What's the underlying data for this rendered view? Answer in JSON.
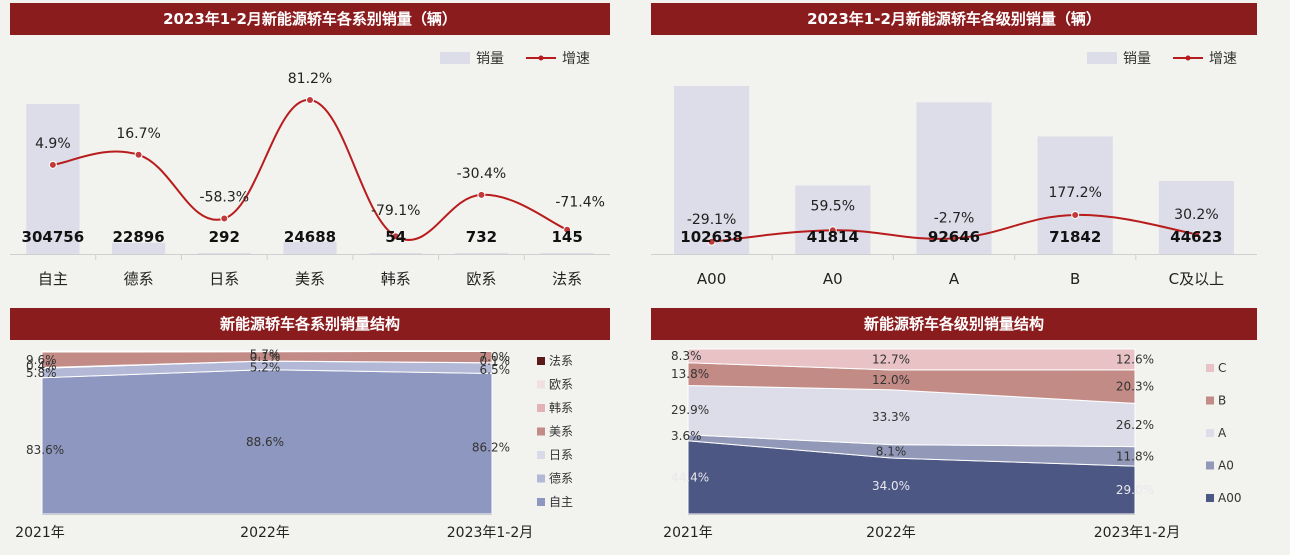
{
  "chart_data": [
    {
      "type": "bar",
      "title": "2023年1-2月新能源轿车各系别销量（辆）",
      "categories": [
        "自主",
        "德系",
        "日系",
        "美系",
        "韩系",
        "欧系",
        "法系"
      ],
      "series": [
        {
          "name": "销量",
          "type": "bar",
          "values": [
            304756,
            22896,
            292,
            24688,
            54,
            732,
            145
          ]
        },
        {
          "name": "增速",
          "type": "line",
          "values": [
            4.9,
            16.7,
            -58.3,
            81.2,
            -79.1,
            -30.4,
            -71.4
          ],
          "value_labels": [
            "4.9%",
            "16.7%",
            "-58.3%",
            "81.2%",
            "-79.1%",
            "-30.4%",
            "-71.4%"
          ]
        }
      ],
      "legend": [
        "销量",
        "增速"
      ],
      "legend_position": "top-right",
      "colors": {
        "bar": "#dcdde8",
        "line": "#b81c1c"
      }
    },
    {
      "type": "bar",
      "title": "2023年1-2月新能源轿车各级别销量（辆）",
      "categories": [
        "A00",
        "A0",
        "A",
        "B",
        "C及以上"
      ],
      "series": [
        {
          "name": "销量",
          "type": "bar",
          "values": [
            102638,
            41814,
            92646,
            71842,
            44623
          ]
        },
        {
          "name": "增速",
          "type": "line",
          "values": [
            -29.1,
            59.5,
            -2.7,
            177.2,
            30.2
          ],
          "value_labels": [
            "-29.1%",
            "59.5%",
            "-2.7%",
            "177.2%",
            "30.2%"
          ]
        }
      ],
      "legend": [
        "销量",
        "增速"
      ],
      "legend_position": "top-right",
      "colors": {
        "bar": "#dcdde8",
        "line": "#b81c1c"
      }
    },
    {
      "type": "area",
      "stacked": "percent",
      "title": "新能源轿车各系别销量结构",
      "x": [
        "2021年",
        "2022年",
        "2023年1-2月"
      ],
      "series": [
        {
          "name": "自主",
          "values": [
            83.6,
            88.6,
            86.2
          ],
          "labels": [
            "83.6%",
            "88.6%",
            "86.2%"
          ],
          "color": "#8e97bf"
        },
        {
          "name": "德系",
          "values": [
            5.8,
            5.2,
            6.5
          ],
          "labels": [
            "5.8%",
            "5.2%",
            "6.5%"
          ],
          "color": "#b3b8d6"
        },
        {
          "name": "日系",
          "values": [
            0.4,
            0.1,
            0.1
          ],
          "labels": [
            "0.4%",
            "0.1%",
            "0.1%"
          ],
          "color": "#d8dae8"
        },
        {
          "name": "美系",
          "values": [
            9.6,
            5.7,
            7.0
          ],
          "labels": [
            "9.6%",
            "5.7%",
            "7.0%"
          ],
          "color": "#c38b86"
        },
        {
          "name": "韩系",
          "values": [
            0.0,
            0.0,
            0.0
          ],
          "labels": [
            "",
            "",
            ""
          ],
          "color": "#e1b2b6"
        },
        {
          "name": "欧系",
          "values": [
            0.3,
            0.3,
            0.1
          ],
          "labels": [
            "",
            "",
            ""
          ],
          "color": "#f0e0e2"
        },
        {
          "name": "法系",
          "values": [
            0.3,
            0.1,
            0.1
          ],
          "labels": [
            "",
            "",
            ""
          ],
          "color": "#5a1a1a"
        }
      ],
      "legend": [
        "法系",
        "欧系",
        "韩系",
        "美系",
        "日系",
        "德系",
        "自主"
      ],
      "legend_position": "right"
    },
    {
      "type": "area",
      "stacked": "percent",
      "title": "新能源轿车各级别销量结构",
      "x": [
        "2021年",
        "2022年",
        "2023年1-2月"
      ],
      "series": [
        {
          "name": "A00",
          "values": [
            44.4,
            34.0,
            29.0
          ],
          "labels": [
            "44.4%",
            "34.0%",
            "29.0%"
          ],
          "color": "#4d5784"
        },
        {
          "name": "A0",
          "values": [
            3.6,
            8.1,
            11.8
          ],
          "labels": [
            "3.6%",
            "8.1%",
            "11.8%"
          ],
          "color": "#9298b8"
        },
        {
          "name": "A",
          "values": [
            29.9,
            33.3,
            26.2
          ],
          "labels": [
            "29.9%",
            "33.3%",
            "26.2%"
          ],
          "color": "#dcdde8"
        },
        {
          "name": "B",
          "values": [
            13.8,
            12.0,
            20.3
          ],
          "labels": [
            "13.8%",
            "12.0%",
            "20.3%"
          ],
          "color": "#c38b86"
        },
        {
          "name": "C",
          "values": [
            8.3,
            12.7,
            12.6
          ],
          "labels": [
            "8.3%",
            "12.7%",
            "12.6%"
          ],
          "color": "#e8c2c5"
        }
      ],
      "legend": [
        "C",
        "B",
        "A",
        "A0",
        "A00"
      ],
      "legend_position": "right"
    }
  ]
}
